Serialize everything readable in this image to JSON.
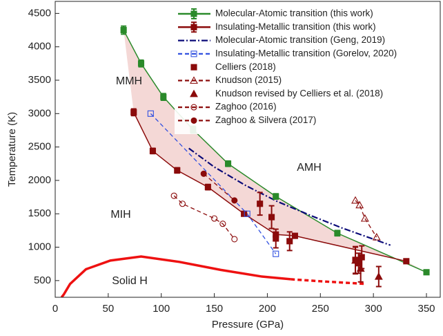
{
  "chart_data": {
    "type": "scatter",
    "xlabel": "Pressure (GPa)",
    "ylabel": "Temperature (K)",
    "xlim": [
      0,
      363
    ],
    "ylim": [
      250,
      4680
    ],
    "xticks": [
      0,
      50,
      100,
      150,
      200,
      250,
      300,
      350
    ],
    "yticks": [
      500,
      1000,
      1500,
      2000,
      2500,
      3000,
      3500,
      4000,
      4500
    ],
    "band_color": "#f4d8d6",
    "annotations": [
      "MMH",
      "AMH",
      "MIH",
      "Solid H"
    ],
    "melting_line": {
      "color": "#ee1111",
      "x": [
        6,
        8,
        14,
        29,
        52,
        81,
        117,
        156,
        195,
        222
      ],
      "values": [
        250,
        290,
        450,
        670,
        800,
        860,
        780,
        660,
        560,
        520
      ]
    },
    "melting_line_extrapolated": {
      "color": "#ee1111",
      "x": [
        222,
        250,
        293
      ],
      "values": [
        520,
        490,
        450
      ]
    },
    "series": [
      {
        "name": "Molecular-Atomic transition (this work)",
        "color": "#2a8a2a",
        "marker": "square-filled",
        "line": "solid",
        "errorbars": true,
        "x": [
          64.5,
          81,
          102,
          130,
          163,
          208,
          266,
          350
        ],
        "values": [
          4250,
          3750,
          3250,
          2760,
          2250,
          1760,
          1210,
          625
        ],
        "yerr": [
          60,
          50,
          50,
          50,
          40,
          40,
          40,
          30
        ]
      },
      {
        "name": "Insulating-Metallic transition (this work)",
        "color": "#8b0b0b",
        "marker": "square-filled",
        "line": "solid",
        "errorbars": true,
        "x": [
          74,
          92,
          115,
          144,
          178,
          208,
          226,
          331
        ],
        "values": [
          3020,
          2440,
          2150,
          1900,
          1500,
          1190,
          1170,
          790
        ],
        "yerr": [
          50,
          40,
          40,
          40,
          30,
          30,
          30,
          30
        ]
      },
      {
        "name": "Molecular-Atomic transition (Geng, 2019)",
        "color": "#0a0a78",
        "marker": "none",
        "line": "dashdot",
        "errorbars": false,
        "x": [
          126,
          150,
          180,
          210,
          240,
          270,
          300,
          316
        ],
        "values": [
          2480,
          2200,
          1920,
          1680,
          1480,
          1290,
          1120,
          1030
        ]
      },
      {
        "name": "Insulating-Metallic transition (Gorelov, 2020)",
        "color": "#3050e0",
        "marker": "square-open",
        "line": "dashed",
        "errorbars": false,
        "x": [
          90,
          181,
          208
        ],
        "values": [
          3000,
          1500,
          900
        ]
      },
      {
        "name": "Celliers (2018)",
        "color": "#8b0b0b",
        "marker": "square-filled",
        "line": "none",
        "errorbars": true,
        "x": [
          193,
          204,
          208,
          221,
          283,
          286,
          289
        ],
        "values": [
          1650,
          1450,
          1130,
          1090,
          810,
          760,
          850
        ],
        "yerr": [
          170,
          170,
          140,
          140,
          200,
          150,
          170
        ]
      },
      {
        "name": "Knudson (2015)",
        "color": "#8b0b0b",
        "marker": "triangle-open",
        "line": "dashed",
        "errorbars": false,
        "x": [
          283,
          287,
          292,
          303
        ],
        "values": [
          1700,
          1630,
          1430,
          1150
        ]
      },
      {
        "name": "Knudson revised by Celliers et al. (2018)",
        "color": "#8b0b0b",
        "marker": "triangle-filled",
        "line": "none",
        "errorbars": true,
        "x": [
          283,
          288,
          305
        ],
        "values": [
          800,
          680,
          560
        ],
        "yerr": [
          200,
          200,
          150
        ]
      },
      {
        "name": "Zaghoo (2016)",
        "color": "#8b0b0b",
        "marker": "circle-open",
        "line": "dashed",
        "errorbars": false,
        "x": [
          112,
          120,
          150,
          158,
          169
        ],
        "values": [
          1770,
          1650,
          1430,
          1350,
          1120
        ]
      },
      {
        "name": "Zaghoo & Silvera (2017)",
        "color": "#8b0b0b",
        "marker": "circle-filled",
        "line": "dashed",
        "errorbars": false,
        "x": [
          140,
          169
        ],
        "values": [
          2100,
          1700
        ]
      }
    ]
  }
}
